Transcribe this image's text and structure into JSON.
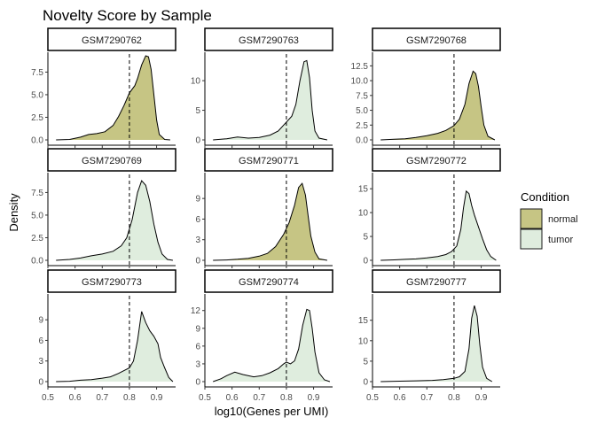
{
  "chart_data": {
    "type": "density-facet",
    "title": "Novelty Score by Sample",
    "xlabel": "log10(Genes per UMI)",
    "ylabel": "Density",
    "xlim": [
      0.5,
      0.97
    ],
    "x_ticks": [
      "0.5",
      "0.6",
      "0.7",
      "0.8",
      "0.9"
    ],
    "cutoff_line": 0.8,
    "legend": {
      "title": "Condition",
      "entries": [
        {
          "label": "normal",
          "color": "#c6c584"
        },
        {
          "label": "tumor",
          "color": "#dfedde"
        }
      ]
    },
    "panels": [
      {
        "sample": "GSM7290762",
        "condition": "normal",
        "ymax": 9.5,
        "y_ticks": [
          0,
          2.5,
          5.0,
          7.5
        ],
        "y_labels": [
          "0.0",
          "2.5",
          "5.0",
          "7.5"
        ],
        "curve": [
          [
            0.53,
            0
          ],
          [
            0.58,
            0.05
          ],
          [
            0.62,
            0.3
          ],
          [
            0.65,
            0.6
          ],
          [
            0.68,
            0.7
          ],
          [
            0.71,
            0.9
          ],
          [
            0.74,
            1.6
          ],
          [
            0.76,
            2.6
          ],
          [
            0.78,
            3.8
          ],
          [
            0.8,
            5.2
          ],
          [
            0.82,
            6.0
          ],
          [
            0.83,
            6.8
          ],
          [
            0.845,
            8.3
          ],
          [
            0.86,
            9.3
          ],
          [
            0.87,
            9.2
          ],
          [
            0.88,
            7.8
          ],
          [
            0.89,
            5.0
          ],
          [
            0.9,
            2.2
          ],
          [
            0.91,
            0.6
          ],
          [
            0.93,
            0.05
          ],
          [
            0.95,
            0
          ]
        ]
      },
      {
        "sample": "GSM7290763",
        "condition": "tumor",
        "ymax": 14.5,
        "y_ticks": [
          0,
          5,
          10
        ],
        "y_labels": [
          "0",
          "5",
          "10"
        ],
        "curve": [
          [
            0.53,
            0
          ],
          [
            0.58,
            0.2
          ],
          [
            0.62,
            0.5
          ],
          [
            0.66,
            0.3
          ],
          [
            0.7,
            0.4
          ],
          [
            0.74,
            0.8
          ],
          [
            0.77,
            1.5
          ],
          [
            0.8,
            3.0
          ],
          [
            0.82,
            4.0
          ],
          [
            0.835,
            6.0
          ],
          [
            0.85,
            10.0
          ],
          [
            0.865,
            13.2
          ],
          [
            0.875,
            13.4
          ],
          [
            0.885,
            10.5
          ],
          [
            0.895,
            5.0
          ],
          [
            0.905,
            1.5
          ],
          [
            0.92,
            0.3
          ],
          [
            0.95,
            0
          ]
        ]
      },
      {
        "sample": "GSM7290768",
        "condition": "normal",
        "ymax": 14.5,
        "y_ticks": [
          0,
          2.5,
          5.0,
          7.5,
          10.0,
          12.5
        ],
        "y_labels": [
          "0.0",
          "2.5",
          "5.0",
          "7.5",
          "10.0",
          "12.5"
        ],
        "curve": [
          [
            0.53,
            0
          ],
          [
            0.58,
            0.1
          ],
          [
            0.62,
            0.2
          ],
          [
            0.66,
            0.4
          ],
          [
            0.7,
            0.7
          ],
          [
            0.74,
            1.1
          ],
          [
            0.77,
            1.6
          ],
          [
            0.8,
            2.4
          ],
          [
            0.82,
            3.5
          ],
          [
            0.84,
            6.0
          ],
          [
            0.855,
            9.5
          ],
          [
            0.87,
            11.6
          ],
          [
            0.88,
            11.2
          ],
          [
            0.89,
            9.0
          ],
          [
            0.9,
            5.5
          ],
          [
            0.91,
            2.5
          ],
          [
            0.925,
            0.6
          ],
          [
            0.95,
            0
          ]
        ]
      },
      {
        "sample": "GSM7290769",
        "condition": "tumor",
        "ymax": 9.5,
        "y_ticks": [
          0,
          2.5,
          5.0,
          7.5
        ],
        "y_labels": [
          "0.0",
          "2.5",
          "5.0",
          "7.5"
        ],
        "curve": [
          [
            0.53,
            0
          ],
          [
            0.58,
            0.1
          ],
          [
            0.62,
            0.25
          ],
          [
            0.66,
            0.5
          ],
          [
            0.7,
            0.7
          ],
          [
            0.74,
            1.0
          ],
          [
            0.77,
            1.6
          ],
          [
            0.79,
            2.5
          ],
          [
            0.81,
            4.5
          ],
          [
            0.83,
            7.5
          ],
          [
            0.845,
            8.8
          ],
          [
            0.86,
            8.3
          ],
          [
            0.875,
            6.5
          ],
          [
            0.89,
            4.0
          ],
          [
            0.905,
            2.0
          ],
          [
            0.92,
            0.7
          ],
          [
            0.94,
            0.1
          ],
          [
            0.96,
            0
          ]
        ]
      },
      {
        "sample": "GSM7290771",
        "condition": "normal",
        "ymax": 12.5,
        "y_ticks": [
          0,
          3,
          6,
          9
        ],
        "y_labels": [
          "0",
          "3",
          "6",
          "9"
        ],
        "curve": [
          [
            0.53,
            0
          ],
          [
            0.58,
            0.05
          ],
          [
            0.62,
            0.15
          ],
          [
            0.66,
            0.3
          ],
          [
            0.7,
            0.6
          ],
          [
            0.73,
            1.0
          ],
          [
            0.76,
            2.0
          ],
          [
            0.79,
            3.8
          ],
          [
            0.81,
            5.5
          ],
          [
            0.83,
            8.0
          ],
          [
            0.845,
            10.6
          ],
          [
            0.858,
            11.2
          ],
          [
            0.87,
            9.5
          ],
          [
            0.88,
            6.5
          ],
          [
            0.89,
            3.5
          ],
          [
            0.905,
            1.2
          ],
          [
            0.92,
            0.2
          ],
          [
            0.95,
            0
          ]
        ]
      },
      {
        "sample": "GSM7290772",
        "condition": "tumor",
        "ymax": 18,
        "y_ticks": [
          0,
          5,
          10,
          15
        ],
        "y_labels": [
          "0",
          "5",
          "10",
          "15"
        ],
        "curve": [
          [
            0.53,
            0
          ],
          [
            0.58,
            0.1
          ],
          [
            0.62,
            0.2
          ],
          [
            0.66,
            0.3
          ],
          [
            0.7,
            0.5
          ],
          [
            0.74,
            0.8
          ],
          [
            0.77,
            1.2
          ],
          [
            0.79,
            1.8
          ],
          [
            0.81,
            3.0
          ],
          [
            0.825,
            6.5
          ],
          [
            0.835,
            11.0
          ],
          [
            0.845,
            14.5
          ],
          [
            0.855,
            14.0
          ],
          [
            0.865,
            11.5
          ],
          [
            0.875,
            9.5
          ],
          [
            0.89,
            7.0
          ],
          [
            0.905,
            4.5
          ],
          [
            0.92,
            2.2
          ],
          [
            0.935,
            0.8
          ],
          [
            0.955,
            0
          ]
        ]
      },
      {
        "sample": "GSM7290773",
        "condition": "tumor",
        "ymax": 12.5,
        "y_ticks": [
          0,
          3,
          6,
          9
        ],
        "y_labels": [
          "0",
          "3",
          "6",
          "9"
        ],
        "curve": [
          [
            0.53,
            0
          ],
          [
            0.58,
            0.05
          ],
          [
            0.62,
            0.2
          ],
          [
            0.66,
            0.3
          ],
          [
            0.7,
            0.5
          ],
          [
            0.73,
            0.7
          ],
          [
            0.76,
            1.2
          ],
          [
            0.78,
            1.6
          ],
          [
            0.8,
            2.0
          ],
          [
            0.815,
            3.0
          ],
          [
            0.83,
            6.0
          ],
          [
            0.845,
            10.2
          ],
          [
            0.86,
            8.6
          ],
          [
            0.875,
            7.4
          ],
          [
            0.89,
            6.6
          ],
          [
            0.905,
            5.5
          ],
          [
            0.915,
            3.5
          ],
          [
            0.93,
            2.0
          ],
          [
            0.945,
            0.6
          ],
          [
            0.96,
            0
          ]
        ]
      },
      {
        "sample": "GSM7290774",
        "condition": "tumor",
        "ymax": 14.5,
        "y_ticks": [
          0,
          3,
          6,
          9,
          12
        ],
        "y_labels": [
          "0",
          "3",
          "6",
          "9",
          "12"
        ],
        "curve": [
          [
            0.53,
            0
          ],
          [
            0.56,
            0.5
          ],
          [
            0.58,
            1.0
          ],
          [
            0.61,
            1.6
          ],
          [
            0.64,
            1.2
          ],
          [
            0.68,
            0.8
          ],
          [
            0.71,
            1.0
          ],
          [
            0.74,
            1.5
          ],
          [
            0.77,
            2.2
          ],
          [
            0.79,
            3.0
          ],
          [
            0.8,
            3.3
          ],
          [
            0.815,
            3.0
          ],
          [
            0.83,
            3.5
          ],
          [
            0.845,
            5.5
          ],
          [
            0.86,
            9.5
          ],
          [
            0.875,
            12.2
          ],
          [
            0.885,
            12.0
          ],
          [
            0.895,
            9.0
          ],
          [
            0.905,
            5.0
          ],
          [
            0.92,
            1.5
          ],
          [
            0.94,
            0.3
          ],
          [
            0.96,
            0
          ]
        ]
      },
      {
        "sample": "GSM7290777",
        "condition": "tumor",
        "ymax": 21,
        "y_ticks": [
          0,
          5,
          10,
          15
        ],
        "y_labels": [
          "0",
          "5",
          "10",
          "15"
        ],
        "curve": [
          [
            0.53,
            0
          ],
          [
            0.6,
            0.1
          ],
          [
            0.66,
            0.2
          ],
          [
            0.72,
            0.3
          ],
          [
            0.76,
            0.5
          ],
          [
            0.8,
            0.8
          ],
          [
            0.82,
            1.2
          ],
          [
            0.84,
            2.5
          ],
          [
            0.855,
            8.0
          ],
          [
            0.865,
            15.5
          ],
          [
            0.875,
            18.6
          ],
          [
            0.885,
            16.0
          ],
          [
            0.895,
            9.0
          ],
          [
            0.905,
            3.5
          ],
          [
            0.92,
            0.8
          ],
          [
            0.94,
            0
          ]
        ]
      }
    ]
  }
}
